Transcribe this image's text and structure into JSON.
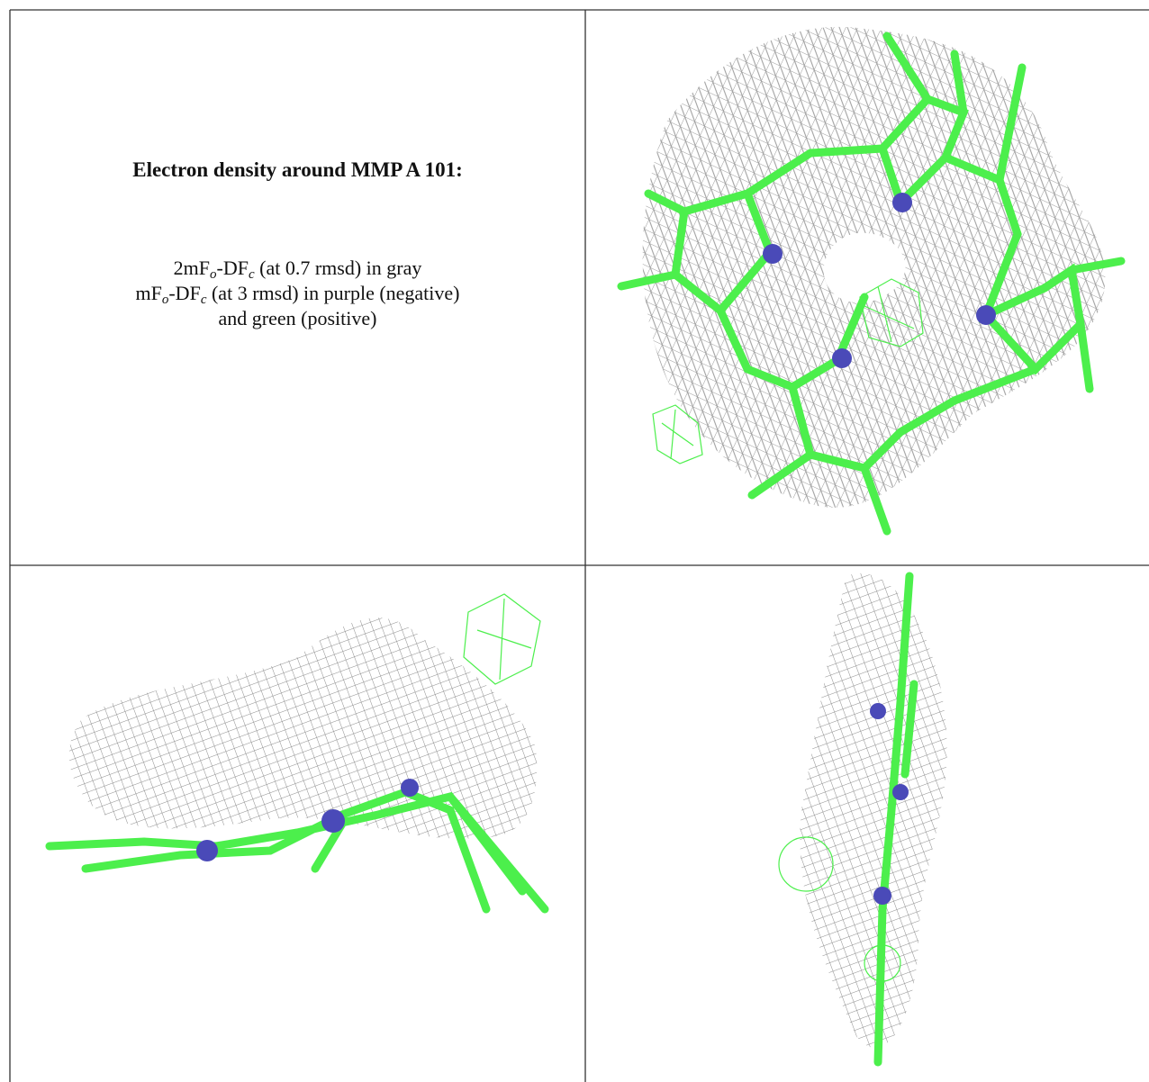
{
  "caption": {
    "title": "Electron density around MMP A 101:",
    "lines": [
      [
        {
          "text": "2mF"
        },
        {
          "sub": "o"
        },
        {
          "text": "-DF"
        },
        {
          "sub": "c"
        },
        {
          "text": " (at 0.7 rmsd) in gray"
        }
      ],
      [
        {
          "text": "mF"
        },
        {
          "sub": "o"
        },
        {
          "text": "-DF"
        },
        {
          "sub": "c"
        },
        {
          "text": " (at 3 rmsd) in purple (negative)"
        }
      ],
      [
        {
          "text": "and green (positive)"
        }
      ]
    ]
  }
}
